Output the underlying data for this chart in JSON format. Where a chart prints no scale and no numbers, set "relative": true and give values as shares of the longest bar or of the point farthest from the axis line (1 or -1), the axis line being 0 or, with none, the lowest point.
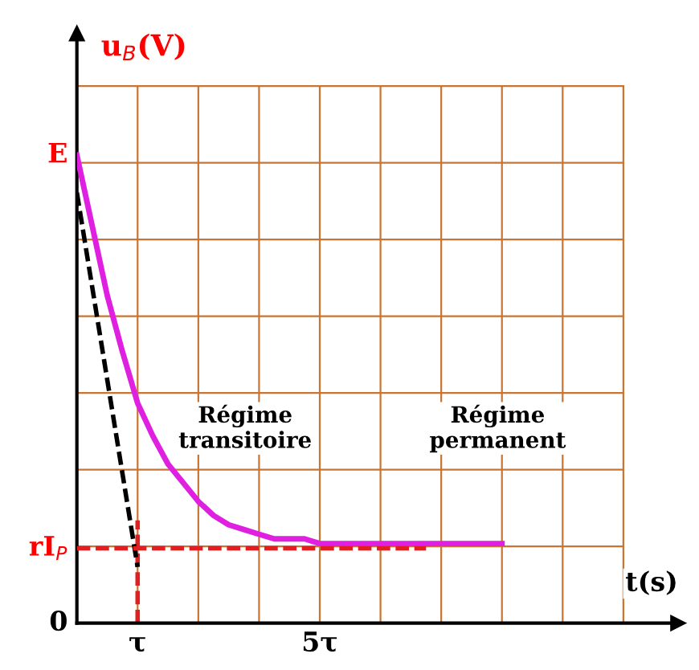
{
  "chart_data": {
    "type": "line",
    "relative": true,
    "xlabel": "t(s)",
    "ylabel": "u$_{B}$(V)",
    "grid": true,
    "categories": [
      null,
      null,
      null,
      null,
      "τ",
      null,
      null,
      null,
      null,
      null,
      null,
      null,
      null,
      null,
      null,
      null,
      "5τ",
      null,
      null,
      null,
      null,
      null,
      null,
      null,
      null,
      null,
      null,
      null,
      null,
      null,
      null,
      null,
      null,
      null,
      null,
      null,
      null
    ],
    "series": [
      {
        "color": "#e020e0",
        "line_style": "solid",
        "values": [
          1,
          0.85,
          0.7,
          0.58,
          0.47,
          0.4,
          0.34,
          0.3,
          0.26,
          0.23,
          0.21,
          0.2,
          0.19,
          0.18,
          0.18,
          0.18,
          0.17,
          0.17,
          0.17,
          0.17,
          0.17,
          0.17,
          0.17,
          0.17,
          0.17,
          0.17,
          0.17,
          0.17,
          0.17,
          null,
          null,
          null,
          null,
          null,
          null,
          null,
          null
        ]
      },
      {
        "color": "#000000",
        "line_style": "dashed",
        "values": [
          0.92,
          0.72,
          0.52,
          0.32,
          0.12,
          null,
          null,
          null,
          null,
          null,
          null,
          null,
          null,
          null,
          null,
          null,
          null,
          null,
          null,
          null,
          null,
          null,
          null,
          null,
          null,
          null,
          null,
          null,
          null,
          null,
          null,
          null,
          null,
          null,
          null,
          null,
          null
        ]
      },
      {
        "color": "#e02020",
        "line_style": "dashed",
        "values": [
          0.16,
          0.16,
          0.16,
          0.16,
          0.16,
          0.16,
          0.16,
          0.16,
          0.16,
          0.16,
          0.16,
          0.16,
          0.16,
          0.16,
          0.16,
          0.16,
          0.16,
          0.16,
          0.16,
          0.16,
          0.16,
          0.16,
          0.16,
          0.16,
          null,
          null,
          null,
          null,
          null,
          null,
          null,
          null,
          null,
          null,
          null,
          null,
          null
        ]
      }
    ],
    "ref_lines": [
      {
        "axis": "x",
        "value": "τ",
        "color": "#e02020",
        "line_style": "dashed"
      }
    ],
    "annotations": [
      "Régime\ntransitoire",
      "Régime\npermanent",
      "E",
      "rI$_{P}$",
      "0"
    ]
  }
}
